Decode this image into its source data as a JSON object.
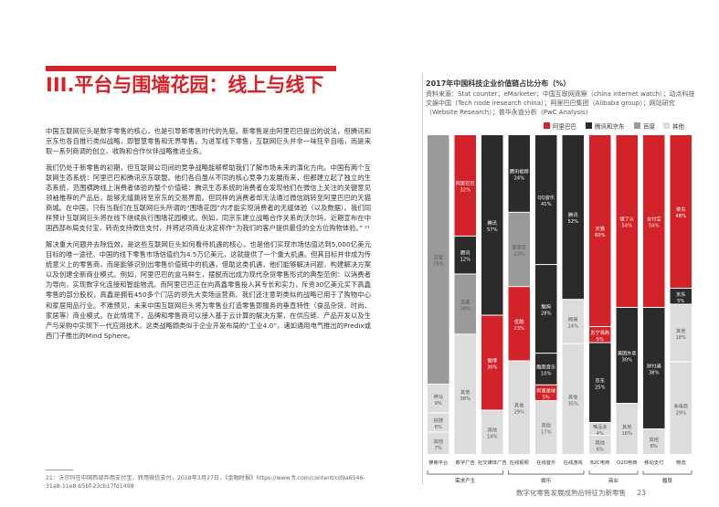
{
  "page_title": "III.平台与围墙花园：线上与线下",
  "paragraphs": [
    "中国互联网巨头是数字零售的核心，也是引导新零售时代的先驱。新零售是由阿里巴巴提出的说法，但腾讯和京东也各自推行类似战略，即智慧零售和无界零售。为进军线下零售，互联网巨头并非一味狂辛自啮，而是来取一系列商调的创立、收购和合作伙伴战略推进业务。",
    "我们仍处于新零售的初期，但互联网公司间的竞争战略能够帮助我们了解市场未来的演化方向。中国有两个互联网生态系统：阿里巴巴和腾讯京东联盟。他们各自虽从不同的核心竞争力发展而来，但都建立起了独立的生态系统，范围横跨线上消费者体验的整个价值链：腾讯生态系统的消费者在发现他们在微信上关注的关键意见领袖推荐的产品后，能够无缝跳转至京东的交易界面。但同样的消费者却无法通过微信跳转至阿里巴巴的天猫商城。在中国，只有当我们在互联网巨头所谓的“围墙花园”内才能实现消费者的无缝体验（以及数据）。我们同样预计互联网巨头将在线下继续执行围墙花园模式。例如，同京东建立战略合作关系的沃尔玛，近期宣布在中国西部布局支付宝，转而支持微信支付，并将这项商业决定称作“为我们的客户提供最佳的全方位购物体验。” ²¹",
    "解决重大问题并去除低效，是这些互联网巨头如何看待机遇的核心，也是他们实现市场估值达到5,000亿美元目标的唯一途径。中国的线下零售市场估值约为4.5万亿美元，这就提供了一个重大机遇。但其目标并非成为传统意义上的零售商，而是能够识别出零售价值链中的机遇，借助这类机遇，他们能够解决问题，构建解决方案以及创建全新商业模式。例如，阿里巴巴的盒马鲜生，摆脱而出成为现代杂货零售形式的典型范例：以消费者为导向，实现数字化连接和智能物流。而阿里巴巴正在向高鑫零售投入其专长和实力，斥资30亿美元买下高鑫零售的部分股权，高鑫是拥有450多个门店的领先大卖场运营商。我们还注意到类似的战略已用于了购物中心和家居用品行业。不难预见，未来中国互联网巨头将为零售业打造零售即服务的垂直特性（食品杂货、时尚、家居等）商业模式。在此情境下，品牌和零售商可以接入基于云计算的解决方案，在供应链、产品开发以及生产与采购中实现下一代应用技术。这类战略颇类似于企业开发布局的“工业4.0”，诸如通用电气推出的Predix或西门子推出的Mind Sphere。"
  ],
  "footnote": "21：沃尔玛在中国西部弃用支付宝，转用微信支付，2018年3月27日，《金融时报》https://www.ft.com/content/cd9a6546-31a8-11e8-b5bf-23cb17fd1498",
  "footer": {
    "text": "数字化零售发展成熟后特征为新零售",
    "page": "23"
  },
  "chart_data": {
    "type": "bar",
    "title": "2017年中国科技企业价值链占比分布（%）",
    "source": "资料来源：Stat counter；eMarketer；中国互联网观察（china internet watch）；动点科技文娱中国（Tech node iresearch china）；阿里巴巴集团（Alibaba group）；网站研究（Website Research）；普华永道分析（PwC Analysis）",
    "stacked_percent": true,
    "legend": [
      "阿里巴巴",
      "腾讯和京东",
      "百度",
      "其他"
    ],
    "legend_placement": "top-right",
    "colors": {
      "阿里巴巴": "#d2232a",
      "腾讯和京东": "#2b2b2b",
      "百度": "#9a9a9a",
      "其他": "#dcdcdc"
    },
    "categories": [
      "搜索平台",
      "数字广告",
      "社交媒体广告",
      "在线视频",
      "在线音乐",
      "在线游戏",
      "B2C电商",
      "O2O电商",
      "移动支付",
      "物流"
    ],
    "stages": [
      {
        "label": "需求产生",
        "from": 0,
        "to": 3
      },
      {
        "label": "娱乐",
        "from": 3,
        "to": 6
      },
      {
        "label": "商业",
        "from": 6,
        "to": 8
      },
      {
        "label": "履赞",
        "from": 8,
        "to": 10
      }
    ],
    "columns": [
      {
        "category": "搜索平台",
        "segments": [
          {
            "series": "百度",
            "label": "百度",
            "value": 78
          },
          {
            "series": "其他",
            "label": "神马",
            "value": 9
          },
          {
            "series": "其他",
            "label": "好搜",
            "value": 6
          },
          {
            "series": "其他",
            "label": "其他",
            "value": 7
          }
        ]
      },
      {
        "category": "数字广告",
        "segments": [
          {
            "series": "阿里巴巴",
            "label": "阿里巴巴",
            "value": 32
          },
          {
            "series": "腾讯和京东",
            "label": "腾讯",
            "value": 12
          },
          {
            "series": "百度",
            "label": "百度",
            "value": 19
          },
          {
            "series": "其他",
            "label": "其他",
            "value": 38
          }
        ]
      },
      {
        "category": "社交媒体广告",
        "segments": [
          {
            "series": "腾讯和京东",
            "label": "腾讯",
            "value": 57
          },
          {
            "series": "阿里巴巴",
            "label": "微博",
            "value": 30
          },
          {
            "series": "其他",
            "label": "其他",
            "value": 14
          }
        ]
      },
      {
        "category": "在线视频",
        "segments": [
          {
            "series": "腾讯和京东",
            "label": "腾讯视频",
            "value": 24
          },
          {
            "series": "百度",
            "label": "爱奇艺",
            "value": 23
          },
          {
            "series": "阿里巴巴",
            "label": "优酷",
            "value": 23
          },
          {
            "series": "其他",
            "label": "其他",
            "value": 29
          }
        ]
      },
      {
        "category": "在线音乐",
        "segments": [
          {
            "series": "腾讯和京东",
            "label": "QQ音乐",
            "value": 41
          },
          {
            "series": "腾讯和京东",
            "label": "酷狗",
            "value": 28
          },
          {
            "series": "腾讯和京东",
            "label": "酷我音乐",
            "value": 10
          },
          {
            "series": "阿里巴巴",
            "label": "阿里星球",
            "value": 5
          },
          {
            "series": "其他",
            "label": "其他",
            "value": 17
          }
        ]
      },
      {
        "category": "在线游戏",
        "segments": [
          {
            "series": "腾讯和京东",
            "label": "腾讯",
            "value": 52
          },
          {
            "series": "其他",
            "label": "网易",
            "value": 14
          },
          {
            "series": "其他",
            "label": "其他",
            "value": 35
          }
        ]
      },
      {
        "category": "B2C电商",
        "segments": [
          {
            "series": "阿里巴巴",
            "label": "天猫",
            "value": 60
          },
          {
            "series": "阿里巴巴",
            "label": "苏宁易购",
            "value": 5
          },
          {
            "series": "腾讯和京东",
            "label": "京东",
            "value": 25
          },
          {
            "series": "其他",
            "label": "唯品会",
            "value": 4
          },
          {
            "series": "其他",
            "label": "其他",
            "value": 6
          }
        ]
      },
      {
        "category": "O2O电商",
        "segments": [
          {
            "series": "阿里巴巴",
            "label": "饿了么",
            "value": 54
          },
          {
            "series": "腾讯和京东",
            "label": "美团外卖",
            "value": 30
          },
          {
            "series": "其他",
            "label": "其他",
            "value": 16
          }
        ]
      },
      {
        "category": "移动支付",
        "segments": [
          {
            "series": "阿里巴巴",
            "label": "支付宝",
            "value": 54
          },
          {
            "series": "腾讯和京东",
            "label": "财付通",
            "value": 38
          },
          {
            "series": "其他",
            "label": "其他",
            "value": 8
          }
        ]
      },
      {
        "category": "物流",
        "segments": [
          {
            "series": "阿里巴巴",
            "label": "菜鸟",
            "value": 48
          },
          {
            "series": "腾讯和京东",
            "label": "京东",
            "value": 5
          },
          {
            "series": "其他",
            "label": "其他",
            "value": 18
          },
          {
            "series": "其他",
            "label": "非电商",
            "value": 29
          }
        ]
      }
    ]
  }
}
